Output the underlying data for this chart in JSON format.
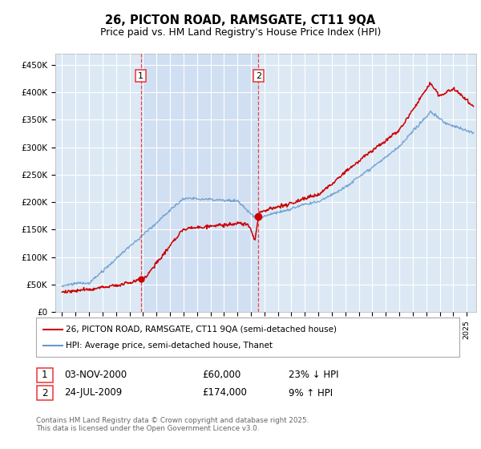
{
  "title": "26, PICTON ROAD, RAMSGATE, CT11 9QA",
  "subtitle": "Price paid vs. HM Land Registry's House Price Index (HPI)",
  "ylabel_ticks": [
    "£0",
    "£50K",
    "£100K",
    "£150K",
    "£200K",
    "£250K",
    "£300K",
    "£350K",
    "£400K",
    "£450K"
  ],
  "ytick_values": [
    0,
    50000,
    100000,
    150000,
    200000,
    250000,
    300000,
    350000,
    400000,
    450000
  ],
  "ylim": [
    0,
    470000
  ],
  "xlim_start": 1994.5,
  "xlim_end": 2025.7,
  "bg_color": "#dce9f5",
  "grid_color": "#ffffff",
  "sale1_date": 2000.84,
  "sale1_price": 60000,
  "sale2_date": 2009.56,
  "sale2_price": 174000,
  "legend_entries": [
    "26, PICTON ROAD, RAMSGATE, CT11 9QA (semi-detached house)",
    "HPI: Average price, semi-detached house, Thanet"
  ],
  "annotation1_date_str": "03-NOV-2000",
  "annotation1_price_str": "£60,000",
  "annotation1_hpi_str": "23% ↓ HPI",
  "annotation2_date_str": "24-JUL-2009",
  "annotation2_price_str": "£174,000",
  "annotation2_hpi_str": "9% ↑ HPI",
  "copyright_text": "Contains HM Land Registry data © Crown copyright and database right 2025.\nThis data is licensed under the Open Government Licence v3.0.",
  "line_red": "#cc0000",
  "line_blue": "#6699cc",
  "shade_blue": "#c8d8f0",
  "dashed_red": "#ee3333"
}
